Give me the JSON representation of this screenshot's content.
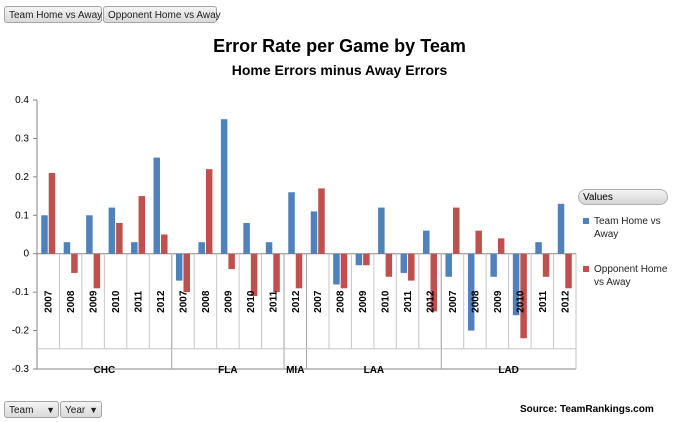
{
  "filters": {
    "team_home_label": "Team Home vs Away",
    "opp_home_label": "Opponent Home vs Away",
    "team_label": "Team",
    "year_label": "Year",
    "team_icon": "filter-dropdown-icon",
    "year_icon": "dropdown-icon"
  },
  "legend": {
    "header": "Values"
  },
  "source": "Source: TeamRankings.com",
  "chart_data": {
    "type": "bar",
    "title": "Error Rate per Game by Team",
    "subtitle": "Home Errors minus Away Errors",
    "ylim": [
      -0.3,
      0.4
    ],
    "yticks": [
      "0.4",
      "0.3",
      "0.2",
      "0.1",
      "0",
      "-0.1",
      "-0.2",
      "-0.3"
    ],
    "grid": false,
    "legend_position": "right",
    "groups": [
      {
        "name": "CHC",
        "years": [
          "2007",
          "2008",
          "2009",
          "2010",
          "2011",
          "2012"
        ]
      },
      {
        "name": "FLA",
        "years": [
          "2007",
          "2008",
          "2009",
          "2010",
          "2011"
        ]
      },
      {
        "name": "MIA",
        "years": [
          "2012"
        ]
      },
      {
        "name": "LAA",
        "years": [
          "2007",
          "2008",
          "2009",
          "2010",
          "2011",
          "2012"
        ]
      },
      {
        "name": "LAD",
        "years": [
          "2007",
          "2008",
          "2009",
          "2010",
          "2011",
          "2012"
        ]
      }
    ],
    "series": [
      {
        "name": "Team Home vs Away",
        "color": "#4f81bd",
        "values": [
          0.1,
          0.03,
          0.1,
          0.12,
          0.03,
          0.25,
          -0.07,
          0.03,
          0.35,
          0.08,
          0.03,
          0.16,
          0.11,
          -0.08,
          -0.03,
          0.12,
          -0.05,
          0.06,
          -0.06,
          -0.2,
          -0.06,
          -0.16,
          0.03,
          0.13
        ]
      },
      {
        "name": "Opponent Home vs Away",
        "color": "#c0504d",
        "values": [
          0.21,
          -0.05,
          -0.09,
          0.08,
          0.15,
          0.05,
          -0.1,
          0.22,
          -0.04,
          -0.11,
          -0.1,
          -0.09,
          0.17,
          -0.09,
          -0.03,
          -0.06,
          -0.07,
          -0.15,
          0.12,
          0.06,
          0.04,
          -0.22,
          -0.06,
          -0.09
        ]
      }
    ]
  }
}
